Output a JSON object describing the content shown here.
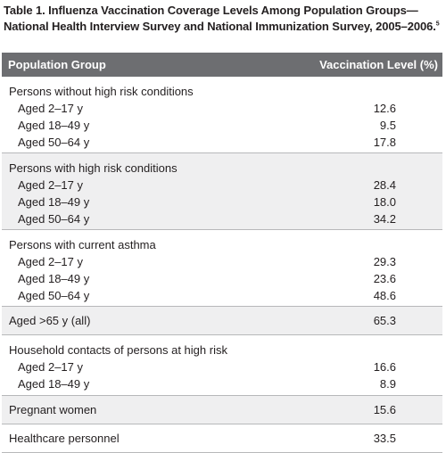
{
  "caption": {
    "title": "Table 1. Influenza Vaccination Coverage Levels Among Population Groups—National Health Interview Survey and National Immunization Survey, 2005–2006.",
    "superscript": "5"
  },
  "table": {
    "headers": [
      "Population Group",
      "Vaccination Level (%)"
    ],
    "groups": [
      {
        "title": "Persons without high risk conditions",
        "value": "",
        "shaded": false,
        "rows": [
          {
            "label": "Aged 2–17 y",
            "value": "12.6"
          },
          {
            "label": "Aged 18–49 y",
            "value": "9.5"
          },
          {
            "label": "Aged 50–64 y",
            "value": "17.8"
          }
        ]
      },
      {
        "title": "Persons with high risk conditions",
        "value": "",
        "shaded": true,
        "rows": [
          {
            "label": "Aged 2–17 y",
            "value": "28.4"
          },
          {
            "label": "Aged 18–49 y",
            "value": "18.0"
          },
          {
            "label": "Aged 50–64 y",
            "value": "34.2"
          }
        ]
      },
      {
        "title": "Persons with current asthma",
        "value": "",
        "shaded": false,
        "rows": [
          {
            "label": "Aged 2–17 y",
            "value": "29.3"
          },
          {
            "label": "Aged 18–49 y",
            "value": "23.6"
          },
          {
            "label": "Aged 50–64 y",
            "value": "48.6"
          }
        ]
      },
      {
        "title": "Aged >65 y (all)",
        "value": "65.3",
        "shaded": true,
        "rows": []
      },
      {
        "title": "Household contacts of persons at high risk",
        "value": "",
        "shaded": false,
        "rows": [
          {
            "label": "Aged 2–17 y",
            "value": "16.6"
          },
          {
            "label": "Aged 18–49 y",
            "value": "8.9"
          }
        ]
      },
      {
        "title": "Pregnant women",
        "value": "15.6",
        "shaded": true,
        "rows": []
      },
      {
        "title": "Healthcare personnel",
        "value": "33.5",
        "shaded": false,
        "rows": []
      }
    ]
  }
}
